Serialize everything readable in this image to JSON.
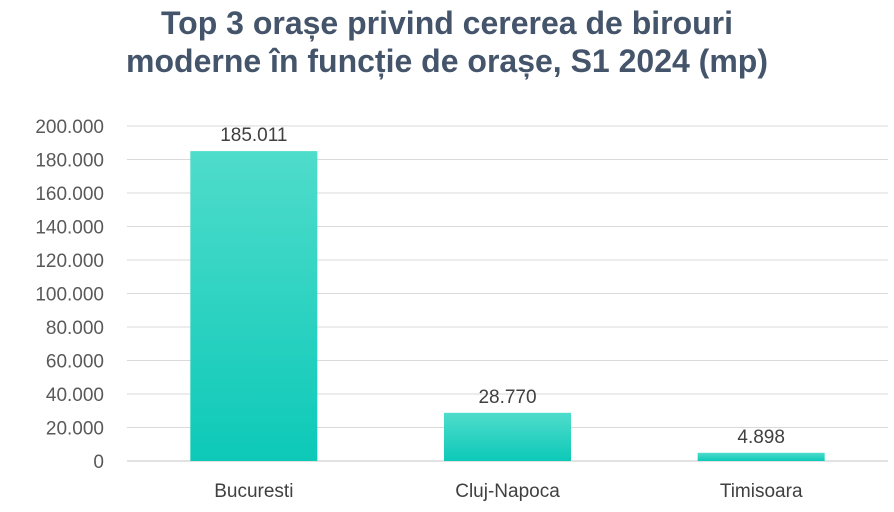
{
  "chart_data": {
    "type": "bar",
    "title_lines": [
      "Top 3 orașe privind cererea de birouri",
      "moderne în funcție de orașe, S1 2024 (mp)"
    ],
    "categories": [
      "Bucuresti",
      "Cluj-Napoca",
      "Timisoara"
    ],
    "values": [
      185011,
      28770,
      4898
    ],
    "data_labels": [
      "185.011",
      "28.770",
      "4.898"
    ],
    "y_ticks": [
      0,
      20000,
      40000,
      60000,
      80000,
      100000,
      120000,
      140000,
      160000,
      180000,
      200000
    ],
    "y_tick_labels": [
      "0",
      "20.000",
      "40.000",
      "60.000",
      "80.000",
      "100.000",
      "120.000",
      "140.000",
      "160.000",
      "180.000",
      "200.000"
    ],
    "ylim": [
      0,
      200000
    ],
    "xlabel": "",
    "ylabel": "",
    "grid": true,
    "legend": "none",
    "colors": {
      "bar_top": "#4fdccb",
      "bar_bottom": "#0dc9b8",
      "grid": "#d9d9d9",
      "title": "#44546a"
    }
  }
}
